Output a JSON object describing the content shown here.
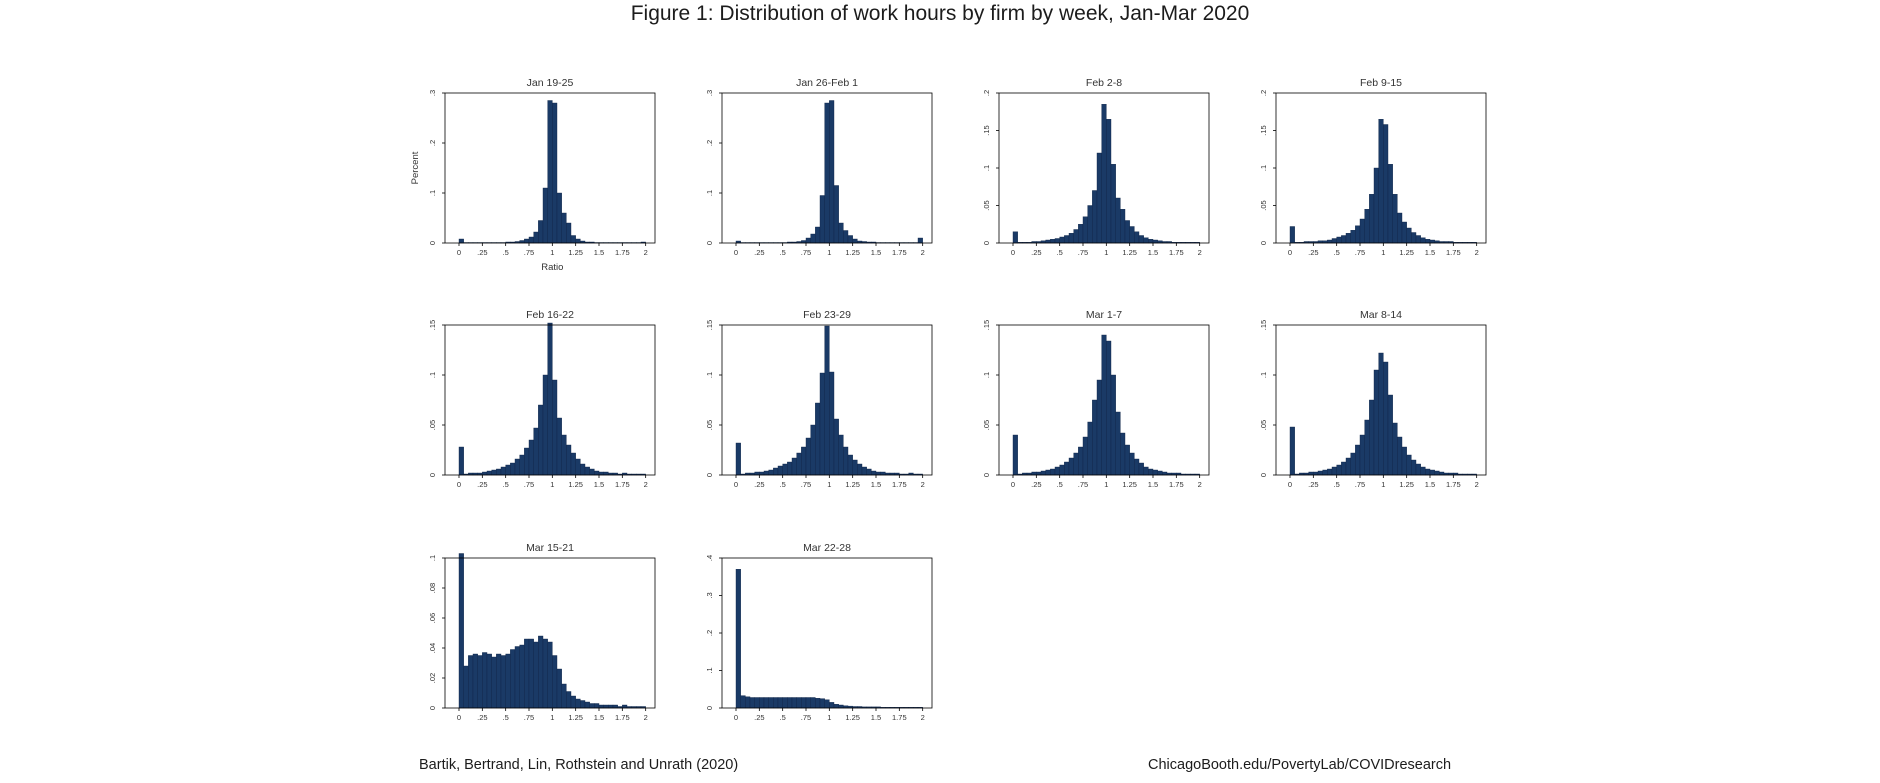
{
  "figure": {
    "title": "Figure 1: Distribution of work hours by firm by week, Jan-Mar 2020",
    "footer_left": "Bartik, Bertrand, Lin, Rothstein and Unrath (2020)",
    "footer_right": "ChicagoBooth.edu/PovertyLab/COVIDresearch"
  },
  "colors": {
    "bar_fill": "#1a3a66",
    "bar_edge": "#0f2547",
    "axis": "#000000",
    "text": "#333333"
  },
  "axes": {
    "xlabel": "Ratio",
    "ylabel": "Percent",
    "x_ticks": [
      0,
      0.25,
      0.5,
      0.75,
      1,
      1.25,
      1.5,
      1.75,
      2
    ],
    "x_tick_labels": [
      "0",
      ".25",
      ".5",
      ".75",
      "1",
      "1.25",
      "1.5",
      "1.75",
      "2"
    ],
    "x_range": [
      -0.15,
      2.1
    ],
    "bin_width": 0.05,
    "bin_start": 0
  },
  "chart_data": [
    {
      "type": "bar",
      "title": "Jan 19-25",
      "ylim": [
        0,
        0.3
      ],
      "y_ticks": [
        0,
        0.1,
        0.2,
        0.3
      ],
      "y_tick_labels": [
        "0",
        ".1",
        ".2",
        ".3"
      ],
      "values": [
        0.008,
        0.001,
        0.001,
        0.001,
        0.001,
        0.001,
        0.001,
        0.001,
        0.001,
        0.001,
        0.002,
        0.002,
        0.003,
        0.005,
        0.008,
        0.012,
        0.022,
        0.045,
        0.11,
        0.285,
        0.28,
        0.1,
        0.06,
        0.04,
        0.015,
        0.008,
        0.004,
        0.002,
        0.002,
        0.001,
        0.001,
        0.001,
        0.001,
        0.001,
        0.001,
        0.001,
        0.001,
        0.001,
        0.001,
        0.002
      ]
    },
    {
      "type": "bar",
      "title": "Jan 26-Feb 1",
      "ylim": [
        0,
        0.3
      ],
      "y_ticks": [
        0,
        0.1,
        0.2,
        0.3
      ],
      "y_tick_labels": [
        "0",
        ".1",
        ".2",
        ".3"
      ],
      "values": [
        0.004,
        0.001,
        0.001,
        0.001,
        0.001,
        0.001,
        0.001,
        0.001,
        0.001,
        0.001,
        0.001,
        0.002,
        0.002,
        0.003,
        0.005,
        0.01,
        0.018,
        0.032,
        0.095,
        0.28,
        0.285,
        0.115,
        0.04,
        0.025,
        0.015,
        0.008,
        0.004,
        0.003,
        0.002,
        0.002,
        0.001,
        0.001,
        0.001,
        0.001,
        0.001,
        0.001,
        0.001,
        0.001,
        0.001,
        0.01
      ]
    },
    {
      "type": "bar",
      "title": "Feb 2-8",
      "ylim": [
        0,
        0.2
      ],
      "y_ticks": [
        0,
        0.05,
        0.1,
        0.15,
        0.2
      ],
      "y_tick_labels": [
        "0",
        ".05",
        ".1",
        ".15",
        ".2"
      ],
      "values": [
        0.015,
        0.001,
        0.001,
        0.001,
        0.002,
        0.002,
        0.003,
        0.004,
        0.005,
        0.006,
        0.008,
        0.01,
        0.013,
        0.018,
        0.025,
        0.035,
        0.05,
        0.07,
        0.12,
        0.185,
        0.165,
        0.105,
        0.06,
        0.045,
        0.03,
        0.022,
        0.015,
        0.01,
        0.007,
        0.005,
        0.004,
        0.003,
        0.002,
        0.002,
        0.001,
        0.001,
        0.001,
        0.001,
        0.001,
        0.001
      ]
    },
    {
      "type": "bar",
      "title": "Feb 9-15",
      "ylim": [
        0,
        0.2
      ],
      "y_ticks": [
        0,
        0.05,
        0.1,
        0.15,
        0.2
      ],
      "y_tick_labels": [
        "0",
        ".05",
        ".1",
        ".15",
        ".2"
      ],
      "values": [
        0.022,
        0.001,
        0.001,
        0.002,
        0.002,
        0.002,
        0.003,
        0.003,
        0.004,
        0.006,
        0.008,
        0.01,
        0.013,
        0.017,
        0.023,
        0.032,
        0.045,
        0.065,
        0.1,
        0.165,
        0.158,
        0.105,
        0.065,
        0.04,
        0.028,
        0.02,
        0.014,
        0.01,
        0.007,
        0.005,
        0.004,
        0.003,
        0.002,
        0.002,
        0.002,
        0.001,
        0.001,
        0.001,
        0.001,
        0.001
      ]
    },
    {
      "type": "bar",
      "title": "Feb 16-22",
      "ylim": [
        0,
        0.15
      ],
      "y_ticks": [
        0,
        0.05,
        0.1,
        0.15
      ],
      "y_tick_labels": [
        "0",
        ".05",
        ".1",
        ".15"
      ],
      "values": [
        0.028,
        0.001,
        0.002,
        0.002,
        0.002,
        0.003,
        0.004,
        0.005,
        0.006,
        0.008,
        0.01,
        0.012,
        0.016,
        0.02,
        0.027,
        0.035,
        0.047,
        0.07,
        0.1,
        0.152,
        0.095,
        0.057,
        0.04,
        0.03,
        0.022,
        0.016,
        0.011,
        0.008,
        0.006,
        0.004,
        0.003,
        0.003,
        0.002,
        0.002,
        0.001,
        0.002,
        0.001,
        0.001,
        0.001,
        0.001
      ]
    },
    {
      "type": "bar",
      "title": "Feb 23-29",
      "ylim": [
        0,
        0.15
      ],
      "y_ticks": [
        0,
        0.05,
        0.1,
        0.15
      ],
      "y_tick_labels": [
        "0",
        ".05",
        ".1",
        ".15"
      ],
      "values": [
        0.032,
        0.001,
        0.002,
        0.002,
        0.003,
        0.003,
        0.004,
        0.005,
        0.007,
        0.009,
        0.011,
        0.013,
        0.017,
        0.022,
        0.028,
        0.037,
        0.05,
        0.072,
        0.102,
        0.149,
        0.103,
        0.056,
        0.04,
        0.028,
        0.02,
        0.015,
        0.011,
        0.008,
        0.006,
        0.004,
        0.003,
        0.003,
        0.002,
        0.002,
        0.002,
        0.001,
        0.001,
        0.002,
        0.001,
        0.001
      ]
    },
    {
      "type": "bar",
      "title": "Mar 1-7",
      "ylim": [
        0,
        0.15
      ],
      "y_ticks": [
        0,
        0.05,
        0.1,
        0.15
      ],
      "y_tick_labels": [
        "0",
        ".05",
        ".1",
        ".15"
      ],
      "values": [
        0.04,
        0.001,
        0.002,
        0.002,
        0.003,
        0.003,
        0.004,
        0.005,
        0.006,
        0.008,
        0.01,
        0.013,
        0.017,
        0.022,
        0.028,
        0.038,
        0.053,
        0.075,
        0.095,
        0.14,
        0.134,
        0.1,
        0.063,
        0.042,
        0.03,
        0.022,
        0.016,
        0.012,
        0.008,
        0.006,
        0.005,
        0.004,
        0.003,
        0.002,
        0.002,
        0.002,
        0.001,
        0.001,
        0.001,
        0.001
      ]
    },
    {
      "type": "bar",
      "title": "Mar 8-14",
      "ylim": [
        0,
        0.15
      ],
      "y_ticks": [
        0,
        0.05,
        0.1,
        0.15
      ],
      "y_tick_labels": [
        "0",
        ".05",
        ".1",
        ".15"
      ],
      "values": [
        0.048,
        0.001,
        0.002,
        0.002,
        0.003,
        0.003,
        0.004,
        0.005,
        0.006,
        0.008,
        0.01,
        0.013,
        0.017,
        0.022,
        0.03,
        0.04,
        0.055,
        0.075,
        0.105,
        0.122,
        0.113,
        0.08,
        0.052,
        0.038,
        0.028,
        0.02,
        0.015,
        0.011,
        0.008,
        0.006,
        0.005,
        0.004,
        0.003,
        0.002,
        0.002,
        0.002,
        0.001,
        0.001,
        0.001,
        0.001
      ]
    },
    {
      "type": "bar",
      "title": "Mar 15-21",
      "ylim": [
        0,
        0.1
      ],
      "y_ticks": [
        0,
        0.02,
        0.04,
        0.06,
        0.08,
        0.1
      ],
      "y_tick_labels": [
        "0",
        ".02",
        ".04",
        ".06",
        ".08",
        ".1"
      ],
      "values": [
        0.103,
        0.028,
        0.035,
        0.036,
        0.035,
        0.037,
        0.036,
        0.034,
        0.036,
        0.035,
        0.036,
        0.039,
        0.041,
        0.042,
        0.046,
        0.046,
        0.044,
        0.048,
        0.046,
        0.044,
        0.035,
        0.026,
        0.016,
        0.011,
        0.008,
        0.006,
        0.005,
        0.004,
        0.003,
        0.003,
        0.002,
        0.002,
        0.002,
        0.002,
        0.001,
        0.002,
        0.001,
        0.001,
        0.001,
        0.001
      ]
    },
    {
      "type": "bar",
      "title": "Mar 22-28",
      "ylim": [
        0,
        0.4
      ],
      "y_ticks": [
        0,
        0.1,
        0.2,
        0.3,
        0.4
      ],
      "y_tick_labels": [
        "0",
        ".1",
        ".2",
        ".3",
        ".4"
      ],
      "values": [
        0.37,
        0.033,
        0.03,
        0.028,
        0.028,
        0.028,
        0.028,
        0.028,
        0.028,
        0.028,
        0.028,
        0.028,
        0.028,
        0.028,
        0.028,
        0.028,
        0.028,
        0.026,
        0.025,
        0.022,
        0.015,
        0.01,
        0.008,
        0.006,
        0.005,
        0.004,
        0.004,
        0.003,
        0.003,
        0.003,
        0.003,
        0.002,
        0.002,
        0.002,
        0.002,
        0.002,
        0.002,
        0.002,
        0.002,
        0.002
      ]
    }
  ]
}
